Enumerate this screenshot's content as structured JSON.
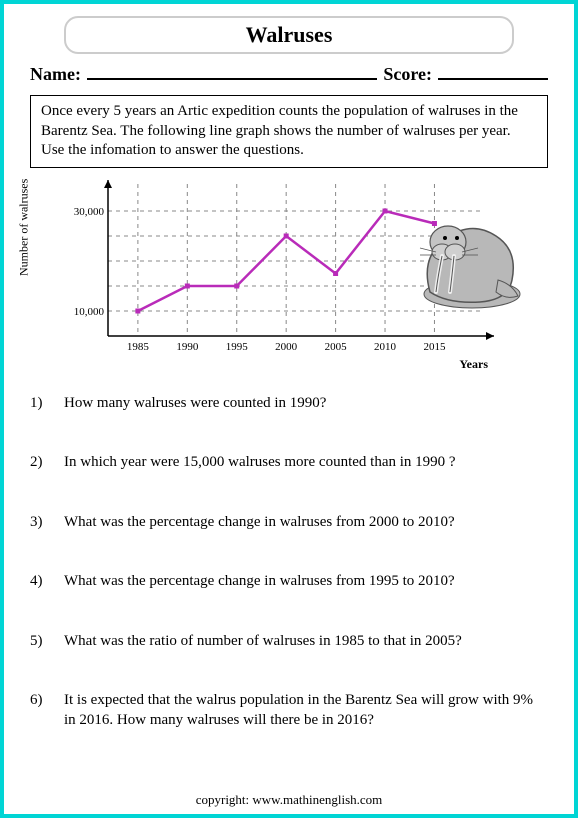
{
  "title": "Walruses",
  "name_label": "Name:",
  "score_label": "Score:",
  "intro": "Once every 5 years an Artic expedition counts the population of walruses in the Barentz Sea. The following line graph shows the number of walruses per year. Use the infomation to answer the questions.",
  "chart": {
    "type": "line",
    "ylabel": "Number of walruses",
    "xlabel": "Years",
    "x_categories": [
      "1985",
      "1990",
      "1995",
      "2000",
      "2005",
      "2010",
      "2015"
    ],
    "y_ticks": [
      10000,
      30000
    ],
    "y_tick_labels": [
      "10,000",
      "30,000"
    ],
    "ylim": [
      5000,
      35000
    ],
    "values": [
      10000,
      15000,
      15000,
      25000,
      17500,
      30000,
      27500
    ],
    "line_color": "#b92bb9",
    "marker_size": 5,
    "grid_color": "#888888",
    "axis_color": "#000000",
    "tick_fontsize": 11
  },
  "questions": [
    {
      "n": "1)",
      "text": "How many walruses were counted in 1990?"
    },
    {
      "n": "2)",
      "text": "In which year were 15,000 walruses more counted than in 1990 ?"
    },
    {
      "n": "3)",
      "text": "What was the percentage change in walruses from 2000 to 2010?"
    },
    {
      "n": "4)",
      "text": "What was the percentage change in walruses from 1995 to 2010?"
    },
    {
      "n": "5)",
      "text": "What was the ratio of number of walruses in 1985 to that in 2005?"
    },
    {
      "n": "6)",
      "text": "It is expected that the walrus population in the Barentz Sea will grow with 9% in 2016. How many walruses will there be in 2016?"
    }
  ],
  "copyright": "copyright:    www.mathinenglish.com"
}
